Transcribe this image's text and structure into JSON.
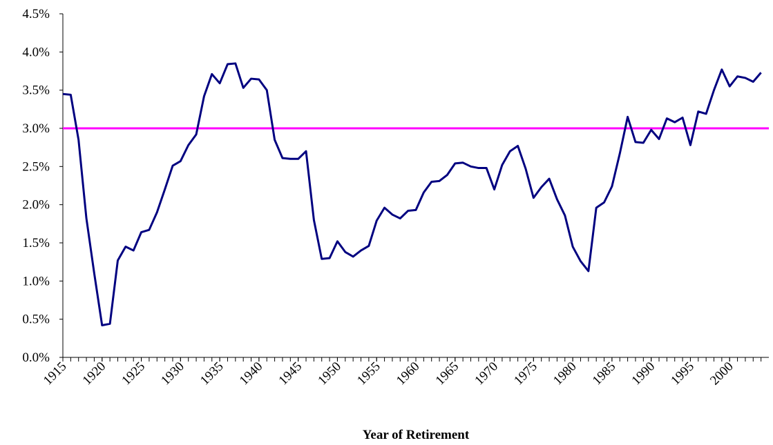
{
  "chart_data": {
    "type": "line",
    "x_label": "Year of Retirement",
    "x": [
      1915,
      1916,
      1917,
      1918,
      1919,
      1920,
      1921,
      1922,
      1923,
      1924,
      1925,
      1926,
      1927,
      1928,
      1929,
      1930,
      1931,
      1932,
      1933,
      1934,
      1935,
      1936,
      1937,
      1938,
      1939,
      1940,
      1941,
      1942,
      1943,
      1944,
      1945,
      1946,
      1947,
      1948,
      1949,
      1950,
      1951,
      1952,
      1953,
      1954,
      1955,
      1956,
      1957,
      1958,
      1959,
      1960,
      1961,
      1962,
      1963,
      1964,
      1965,
      1966,
      1967,
      1968,
      1969,
      1970,
      1971,
      1972,
      1973,
      1974,
      1975,
      1976,
      1977,
      1978,
      1979,
      1980,
      1981,
      1982,
      1983,
      1984,
      1985,
      1986,
      1987,
      1988,
      1989,
      1990,
      1991,
      1992,
      1993,
      1994,
      1995,
      1996,
      1997,
      1998,
      1999,
      2000,
      2001,
      2002,
      2003,
      2004
    ],
    "values": [
      3.45,
      3.44,
      2.85,
      1.82,
      1.1,
      0.42,
      0.44,
      1.27,
      1.45,
      1.4,
      1.64,
      1.67,
      1.9,
      2.2,
      2.51,
      2.57,
      2.78,
      2.92,
      3.42,
      3.71,
      3.59,
      3.84,
      3.85,
      3.53,
      3.65,
      3.64,
      3.5,
      2.85,
      2.61,
      2.6,
      2.6,
      2.7,
      1.8,
      1.29,
      1.3,
      1.52,
      1.38,
      1.32,
      1.4,
      1.46,
      1.79,
      1.96,
      1.87,
      1.82,
      1.92,
      1.93,
      2.16,
      2.3,
      2.31,
      2.39,
      2.54,
      2.55,
      2.5,
      2.48,
      2.48,
      2.2,
      2.52,
      2.7,
      2.77,
      2.47,
      2.09,
      2.23,
      2.34,
      2.07,
      1.86,
      1.45,
      1.26,
      1.13,
      1.96,
      2.03,
      2.24,
      2.67,
      3.15,
      2.82,
      2.81,
      2.98,
      2.86,
      3.13,
      3.08,
      3.14,
      2.78,
      3.22,
      3.19,
      3.5,
      3.77,
      3.55,
      3.68,
      3.66,
      3.61,
      3.73
    ],
    "color": "#000080",
    "reference_line": {
      "value": 3,
      "color": "#ff00ff"
    },
    "xlim": [
      1915,
      2005
    ],
    "xticks": [
      1915,
      1920,
      1925,
      1930,
      1935,
      1940,
      1945,
      1950,
      1955,
      1960,
      1965,
      1970,
      1975,
      1980,
      1985,
      1990,
      1995,
      2000
    ],
    "ylim": [
      0,
      4.5
    ],
    "yticks": [
      {
        "value": 0,
        "label": "0.0%"
      },
      {
        "value": 0.5,
        "label": "0.5%"
      },
      {
        "value": 1,
        "label": "1.0%"
      },
      {
        "value": 1.5,
        "label": "1.5%"
      },
      {
        "value": 2,
        "label": "2.0%"
      },
      {
        "value": 2.5,
        "label": "2.5%"
      },
      {
        "value": 3,
        "label": "3.0%"
      },
      {
        "value": 3.5,
        "label": "3.5%"
      },
      {
        "value": 4,
        "label": "4.0%"
      },
      {
        "value": 4.5,
        "label": "4.5%"
      }
    ]
  }
}
